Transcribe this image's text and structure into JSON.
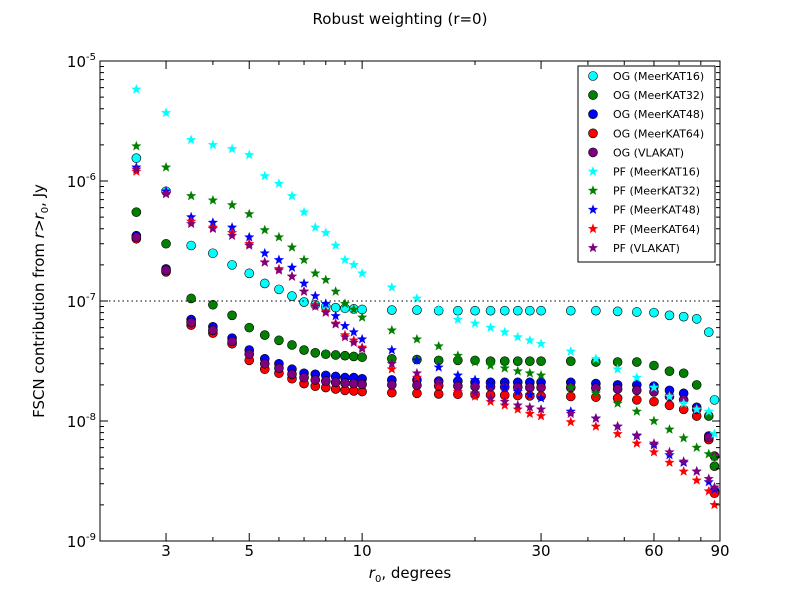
{
  "chart_data": {
    "type": "scatter",
    "title": "Robust weighting (r=0)",
    "xlabel": "r₀, degrees",
    "ylabel": "FSCN contribution from r>r₀, Jy",
    "xscale": "log",
    "yscale": "log",
    "xlim": [
      2.0,
      90
    ],
    "ylim": [
      1e-09,
      1e-05
    ],
    "xticks": [
      {
        "value": 3,
        "label": "3"
      },
      {
        "value": 5,
        "label": "5"
      },
      {
        "value": 10,
        "label": "10"
      },
      {
        "value": 30,
        "label": "30"
      },
      {
        "value": 60,
        "label": "60"
      },
      {
        "value": 90,
        "label": "90"
      }
    ],
    "yticks": [
      {
        "value": 1e-09,
        "base": "10",
        "exp": "-9"
      },
      {
        "value": 1e-08,
        "base": "10",
        "exp": "-8"
      },
      {
        "value": 1e-07,
        "base": "10",
        "exp": "-7"
      },
      {
        "value": 1e-06,
        "base": "10",
        "exp": "-6"
      },
      {
        "value": 1e-05,
        "base": "10",
        "exp": "-5"
      }
    ],
    "reference_line": {
      "y": 1e-07,
      "style": "dotted",
      "color": "#000000"
    },
    "grid": false,
    "legend_position": "top-right",
    "x": [
      2.5,
      3,
      3.5,
      4,
      4.5,
      5,
      5.5,
      6,
      6.5,
      7,
      7.5,
      8,
      8.5,
      9,
      9.5,
      10,
      12,
      14,
      16,
      18,
      20,
      22,
      24,
      26,
      28,
      30,
      36,
      42,
      48,
      54,
      60,
      66,
      72,
      78,
      84,
      87
    ],
    "series": [
      {
        "name": "OG (MeerKAT16)",
        "marker": "circle",
        "color": "#00ffff",
        "values": [
          1.55e-06,
          8.2e-07,
          2.9e-07,
          2.5e-07,
          2e-07,
          1.7e-07,
          1.4e-07,
          1.25e-07,
          1.1e-07,
          9.8e-08,
          9.3e-08,
          9e-08,
          8.8e-08,
          8.7e-08,
          8.6e-08,
          8.5e-08,
          8.4e-08,
          8.4e-08,
          8.3e-08,
          8.3e-08,
          8.3e-08,
          8.3e-08,
          8.3e-08,
          8.3e-08,
          8.3e-08,
          8.3e-08,
          8.3e-08,
          8.3e-08,
          8.2e-08,
          8.1e-08,
          8e-08,
          7.6e-08,
          7.4e-08,
          7.1e-08,
          5.5e-08,
          1.5e-08
        ]
      },
      {
        "name": "OG (MeerKAT32)",
        "marker": "circle",
        "color": "#007f00",
        "values": [
          5.5e-07,
          3e-07,
          1.05e-07,
          9.3e-08,
          7.6e-08,
          6e-08,
          5.2e-08,
          4.7e-08,
          4.3e-08,
          3.9e-08,
          3.7e-08,
          3.6e-08,
          3.55e-08,
          3.5e-08,
          3.45e-08,
          3.4e-08,
          3.3e-08,
          3.25e-08,
          3.2e-08,
          3.2e-08,
          3.2e-08,
          3.15e-08,
          3.15e-08,
          3.15e-08,
          3.15e-08,
          3.15e-08,
          3.15e-08,
          3.1e-08,
          3.1e-08,
          3.1e-08,
          2.9e-08,
          2.6e-08,
          2.5e-08,
          2e-08,
          1.1e-08,
          4.2e-09
        ]
      },
      {
        "name": "OG (MeerKAT48)",
        "marker": "circle",
        "color": "#0000ff",
        "values": [
          3.5e-07,
          1.85e-07,
          7e-08,
          6.1e-08,
          4.9e-08,
          3.9e-08,
          3.3e-08,
          3e-08,
          2.7e-08,
          2.5e-08,
          2.45e-08,
          2.4e-08,
          2.35e-08,
          2.3e-08,
          2.3e-08,
          2.25e-08,
          2.2e-08,
          2.2e-08,
          2.15e-08,
          2.15e-08,
          2.1e-08,
          2.1e-08,
          2.1e-08,
          2.1e-08,
          2.1e-08,
          2.1e-08,
          2.1e-08,
          2.05e-08,
          2e-08,
          2e-08,
          1.95e-08,
          1.8e-08,
          1.7e-08,
          1.3e-08,
          7.5e-09,
          2.6e-09
        ]
      },
      {
        "name": "OG (MeerKAT64)",
        "marker": "circle",
        "color": "#ff0000",
        "values": [
          3.3e-07,
          1.75e-07,
          6.3e-08,
          5.4e-08,
          4.4e-08,
          3.2e-08,
          2.7e-08,
          2.5e-08,
          2.25e-08,
          2.05e-08,
          1.95e-08,
          1.9e-08,
          1.85e-08,
          1.8e-08,
          1.78e-08,
          1.76e-08,
          1.72e-08,
          1.7e-08,
          1.68e-08,
          1.67e-08,
          1.66e-08,
          1.65e-08,
          1.64e-08,
          1.63e-08,
          1.62e-08,
          1.61e-08,
          1.6e-08,
          1.58e-08,
          1.55e-08,
          1.5e-08,
          1.45e-08,
          1.35e-08,
          1.25e-08,
          1.1e-08,
          7e-09,
          2.5e-09
        ]
      },
      {
        "name": "OG (VLAKAT)",
        "marker": "circle",
        "color": "#7f007f",
        "values": [
          3.4e-07,
          1.8e-07,
          6.6e-08,
          5.7e-08,
          4.6e-08,
          3.6e-08,
          3e-08,
          2.75e-08,
          2.45e-08,
          2.3e-08,
          2.2e-08,
          2.15e-08,
          2.1e-08,
          2.07e-08,
          2.05e-08,
          2.02e-08,
          2e-08,
          1.98e-08,
          1.96e-08,
          1.95e-08,
          1.94e-08,
          1.93e-08,
          1.92e-08,
          1.91e-08,
          1.9e-08,
          1.9e-08,
          1.9e-08,
          1.88e-08,
          1.85e-08,
          1.8e-08,
          1.75e-08,
          1.6e-08,
          1.5e-08,
          1.25e-08,
          7.3e-09,
          5.1e-09
        ]
      },
      {
        "name": "PF (MeerKAT16)",
        "marker": "star",
        "color": "#00ffff",
        "values": [
          5.8e-06,
          3.7e-06,
          2.2e-06,
          2e-06,
          1.85e-06,
          1.65e-06,
          1.1e-06,
          9.5e-07,
          7.5e-07,
          5.5e-07,
          4.1e-07,
          3.7e-07,
          2.9e-07,
          2.2e-07,
          2e-07,
          1.7e-07,
          1.3e-07,
          1.05e-07,
          8.5e-08,
          7e-08,
          6.5e-08,
          6e-08,
          5.5e-08,
          5e-08,
          4.7e-08,
          4.4e-08,
          3.8e-08,
          3.3e-08,
          2.7e-08,
          2.3e-08,
          1.9e-08,
          1.6e-08,
          1.4e-08,
          1.25e-08,
          1.2e-08,
          7.8e-09
        ]
      },
      {
        "name": "PF (MeerKAT32)",
        "marker": "star",
        "color": "#007f00",
        "values": [
          1.95e-06,
          1.3e-06,
          7.5e-07,
          6.9e-07,
          6.3e-07,
          5.3e-07,
          3.9e-07,
          3.4e-07,
          2.8e-07,
          2.2e-07,
          1.7e-07,
          1.5e-07,
          1.2e-07,
          9.5e-08,
          8.5e-08,
          7.3e-08,
          5.7e-08,
          4.8e-08,
          4.2e-08,
          3.5e-08,
          3.1e-08,
          2.9e-08,
          2.75e-08,
          2.6e-08,
          2.5e-08,
          2.4e-08,
          1.9e-08,
          1.7e-08,
          1.4e-08,
          1.2e-08,
          1e-08,
          8.5e-09,
          7.2e-09,
          6e-09,
          5.3e-09,
          5e-09
        ]
      },
      {
        "name": "PF (MeerKAT48)",
        "marker": "star",
        "color": "#0000ff",
        "values": [
          1.3e-06,
          8.2e-07,
          5e-07,
          4.5e-07,
          4.1e-07,
          3.4e-07,
          2.5e-07,
          2.2e-07,
          1.9e-07,
          1.4e-07,
          1.1e-07,
          9.5e-08,
          7.5e-08,
          6.2e-08,
          5.5e-08,
          4.8e-08,
          3.9e-08,
          3.2e-08,
          2.8e-08,
          2.4e-08,
          2.2e-08,
          2e-08,
          1.9e-08,
          1.75e-08,
          1.65e-08,
          1.55e-08,
          1.2e-08,
          1.05e-08,
          9e-09,
          7.5e-09,
          6.3e-09,
          5.2e-09,
          4.5e-09,
          3.8e-09,
          3.1e-09,
          2.7e-09
        ]
      },
      {
        "name": "PF (MeerKAT64)",
        "marker": "star",
        "color": "#ff0000",
        "values": [
          1.2e-06,
          7.8e-07,
          4.6e-07,
          4.1e-07,
          3.7e-07,
          3e-07,
          2.1e-07,
          1.85e-07,
          1.6e-07,
          1.2e-07,
          9.3e-08,
          8.2e-08,
          6.5e-08,
          5.2e-08,
          4.7e-08,
          4.1e-08,
          2.7e-08,
          2.3e-08,
          1.95e-08,
          1.75e-08,
          1.6e-08,
          1.45e-08,
          1.35e-08,
          1.25e-08,
          1.15e-08,
          1.1e-08,
          9.8e-09,
          9e-09,
          7.8e-09,
          6.5e-09,
          5.5e-09,
          4.5e-09,
          3.8e-09,
          3.2e-09,
          2.6e-09,
          2e-09
        ]
      },
      {
        "name": "PF (VLAKAT)",
        "marker": "star",
        "color": "#7f007f",
        "values": [
          1.25e-06,
          7.8e-07,
          4.4e-07,
          4e-07,
          3.5e-07,
          2.9e-07,
          2.1e-07,
          1.8e-07,
          1.6e-07,
          1.2e-07,
          9e-08,
          8e-08,
          6.4e-08,
          5e-08,
          4.5e-08,
          4e-08,
          3e-08,
          2.5e-08,
          2.1e-08,
          1.9e-08,
          1.7e-08,
          1.55e-08,
          1.45e-08,
          1.35e-08,
          1.3e-08,
          1.25e-08,
          1.15e-08,
          1.05e-08,
          9e-09,
          7.6e-09,
          6.5e-09,
          5.5e-09,
          4.6e-09,
          3.8e-09,
          3.3e-09,
          2.8e-09
        ]
      }
    ]
  }
}
